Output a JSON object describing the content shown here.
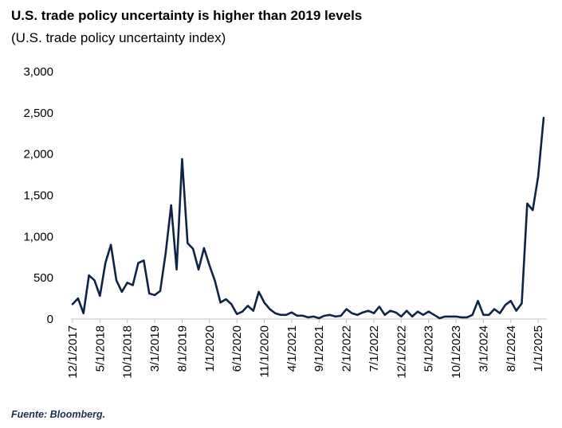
{
  "chart_data": {
    "type": "line",
    "title": "U.S. trade policy uncertainty is higher than 2019 levels",
    "subtitle": "(U.S. trade policy uncertainty index)",
    "xlabel": "",
    "ylabel": "",
    "ylim": [
      0,
      3000
    ],
    "y_ticks": [
      0,
      500,
      1000,
      1500,
      2000,
      2500,
      3000
    ],
    "y_tick_labels": [
      "0",
      "500",
      "1,000",
      "1,500",
      "2,000",
      "2,500",
      "3,000"
    ],
    "x_tick_labels": [
      "12/1/2017",
      "5/1/2018",
      "10/1/2018",
      "3/1/2019",
      "8/1/2019",
      "1/1/2020",
      "6/1/2020",
      "11/1/2020",
      "4/1/2021",
      "9/1/2021",
      "2/1/2022",
      "7/1/2022",
      "12/1/2022",
      "5/1/2023",
      "10/1/2023",
      "3/1/2024",
      "8/1/2024",
      "1/1/2025"
    ],
    "line_color": "#0f2444",
    "grid": false,
    "legend": "none",
    "series": [
      {
        "name": "U.S. trade policy uncertainty index",
        "start": "12/1/2017",
        "frequency": "monthly",
        "values": [
          180,
          250,
          70,
          530,
          470,
          280,
          680,
          900,
          470,
          330,
          440,
          410,
          680,
          710,
          310,
          290,
          340,
          800,
          1380,
          600,
          1940,
          920,
          850,
          600,
          860,
          650,
          460,
          200,
          240,
          180,
          60,
          90,
          160,
          100,
          330,
          200,
          120,
          70,
          50,
          50,
          80,
          40,
          40,
          20,
          30,
          10,
          40,
          50,
          30,
          40,
          120,
          70,
          50,
          80,
          100,
          70,
          150,
          50,
          100,
          80,
          30,
          100,
          30,
          90,
          50,
          90,
          50,
          10,
          30,
          30,
          30,
          20,
          20,
          50,
          220,
          50,
          50,
          120,
          70,
          170,
          220,
          100,
          190,
          1400,
          1320,
          1730,
          2440
        ]
      }
    ]
  },
  "footer": {
    "source": "Fuente: Bloomberg."
  }
}
